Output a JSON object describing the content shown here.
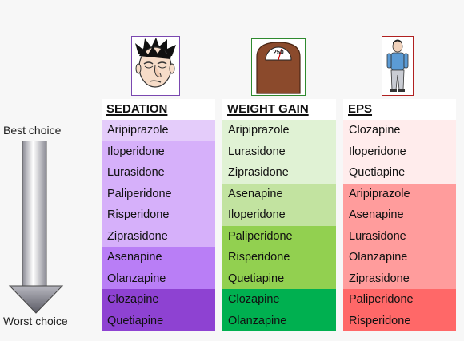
{
  "scale": {
    "best": "Best choice",
    "worst": "Worst choice"
  },
  "columns": [
    {
      "id": "sedation",
      "title": "SEDATION",
      "icon": "drowsy-face-icon",
      "groups": [
        {
          "color": "#e4ccfa",
          "items": [
            "Aripiprazole"
          ]
        },
        {
          "color": "#d6b0fa",
          "items": [
            "Iloperidone",
            "Lurasidone",
            "Paliperidone",
            "Risperidone",
            "Ziprasidone"
          ]
        },
        {
          "color": "#b97ef6",
          "items": [
            "Asenapine",
            "Olanzapine"
          ]
        },
        {
          "color": "#8e42d2",
          "items": [
            "Clozapine",
            "Quetiapine"
          ]
        }
      ]
    },
    {
      "id": "weight-gain",
      "title": "WEIGHT GAIN",
      "icon": "weighing-scale-icon",
      "scale_reading": "250",
      "groups": [
        {
          "color": "#e0f2d4",
          "items": [
            "Aripiprazole",
            "Lurasidone",
            "Ziprasidone"
          ]
        },
        {
          "color": "#c2e3a0",
          "items": [
            "Asenapine",
            "Iloperidone"
          ]
        },
        {
          "color": "#92d050",
          "items": [
            "Paliperidone",
            "Risperidone",
            "Quetiapine"
          ]
        },
        {
          "color": "#00b050",
          "items": [
            "Clozapine",
            "Olanzapine"
          ]
        }
      ]
    },
    {
      "id": "eps",
      "title": "EPS",
      "icon": "stiff-person-icon",
      "groups": [
        {
          "color": "#ffecec",
          "items": [
            "Clozapine",
            "Iloperidone",
            "Quetiapine"
          ]
        },
        {
          "color": "#ff9c9c",
          "items": [
            "Aripiprazole",
            "Asenapine",
            "Lurasidone",
            "Olanzapine",
            "Ziprasidone"
          ]
        },
        {
          "color": "#ff6868",
          "items": [
            "Paliperidone",
            "Risperidone"
          ]
        }
      ]
    }
  ]
}
